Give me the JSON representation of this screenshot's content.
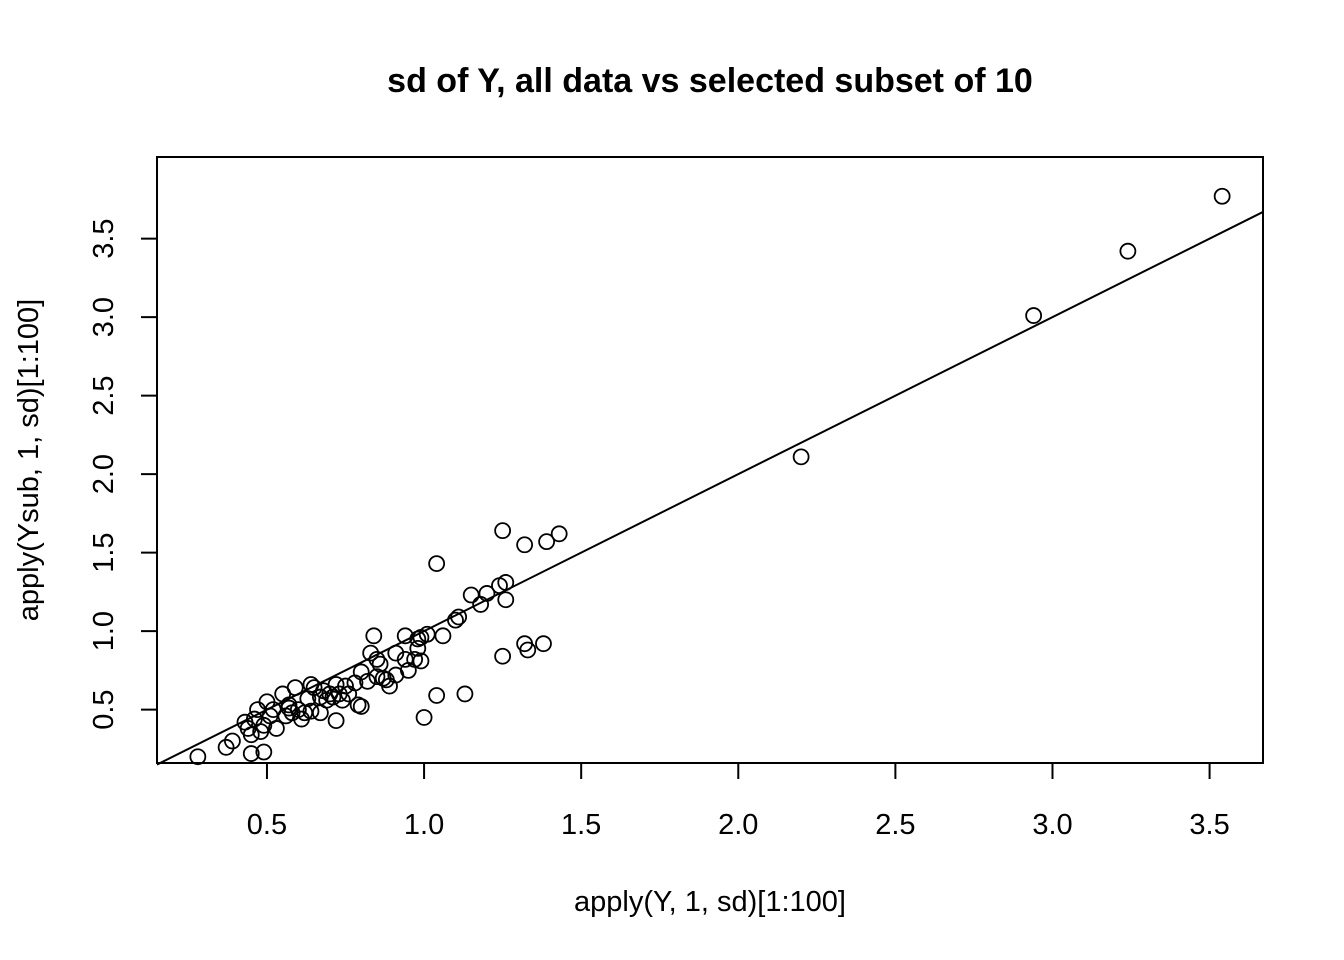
{
  "chart_data": {
    "type": "scatter",
    "title": "sd of Y, all data vs selected subset of 10",
    "xlabel": "apply(Y, 1, sd)[1:100]",
    "ylabel": "apply(Ysub, 1, sd)[1:100]",
    "xlim": [
      0.15,
      3.67
    ],
    "ylim": [
      0.16,
      4.02
    ],
    "xticks": [
      0.5,
      1.0,
      1.5,
      2.0,
      2.5,
      3.0,
      3.5
    ],
    "xtick_labels": [
      "0.5",
      "1.0",
      "1.5",
      "2.0",
      "2.5",
      "3.0",
      "3.5"
    ],
    "yticks": [
      0.5,
      1.0,
      1.5,
      2.0,
      2.5,
      3.0,
      3.5
    ],
    "ytick_labels": [
      "0.5",
      "1.0",
      "1.5",
      "2.0",
      "2.5",
      "3.0",
      "3.5"
    ],
    "grid": false,
    "reference_line": {
      "slope": 1.0,
      "intercept": 0.0
    },
    "points": [
      {
        "x": 0.28,
        "y": 0.2
      },
      {
        "x": 0.37,
        "y": 0.26
      },
      {
        "x": 0.39,
        "y": 0.3
      },
      {
        "x": 0.43,
        "y": 0.42
      },
      {
        "x": 0.44,
        "y": 0.38
      },
      {
        "x": 0.45,
        "y": 0.22
      },
      {
        "x": 0.45,
        "y": 0.34
      },
      {
        "x": 0.46,
        "y": 0.44
      },
      {
        "x": 0.47,
        "y": 0.5
      },
      {
        "x": 0.48,
        "y": 0.36
      },
      {
        "x": 0.49,
        "y": 0.4
      },
      {
        "x": 0.49,
        "y": 0.23
      },
      {
        "x": 0.5,
        "y": 0.55
      },
      {
        "x": 0.51,
        "y": 0.46
      },
      {
        "x": 0.52,
        "y": 0.5
      },
      {
        "x": 0.53,
        "y": 0.38
      },
      {
        "x": 0.55,
        "y": 0.6
      },
      {
        "x": 0.56,
        "y": 0.46
      },
      {
        "x": 0.57,
        "y": 0.53
      },
      {
        "x": 0.57,
        "y": 0.51
      },
      {
        "x": 0.58,
        "y": 0.48
      },
      {
        "x": 0.59,
        "y": 0.64
      },
      {
        "x": 0.6,
        "y": 0.5
      },
      {
        "x": 0.61,
        "y": 0.44
      },
      {
        "x": 0.62,
        "y": 0.48
      },
      {
        "x": 0.63,
        "y": 0.57
      },
      {
        "x": 0.64,
        "y": 0.66
      },
      {
        "x": 0.64,
        "y": 0.49
      },
      {
        "x": 0.65,
        "y": 0.64
      },
      {
        "x": 0.67,
        "y": 0.58
      },
      {
        "x": 0.67,
        "y": 0.48
      },
      {
        "x": 0.68,
        "y": 0.62
      },
      {
        "x": 0.69,
        "y": 0.56
      },
      {
        "x": 0.7,
        "y": 0.6
      },
      {
        "x": 0.71,
        "y": 0.58
      },
      {
        "x": 0.72,
        "y": 0.66
      },
      {
        "x": 0.72,
        "y": 0.43
      },
      {
        "x": 0.73,
        "y": 0.6
      },
      {
        "x": 0.74,
        "y": 0.56
      },
      {
        "x": 0.75,
        "y": 0.65
      },
      {
        "x": 0.76,
        "y": 0.6
      },
      {
        "x": 0.78,
        "y": 0.67
      },
      {
        "x": 0.79,
        "y": 0.53
      },
      {
        "x": 0.8,
        "y": 0.74
      },
      {
        "x": 0.8,
        "y": 0.52
      },
      {
        "x": 0.82,
        "y": 0.68
      },
      {
        "x": 0.83,
        "y": 0.86
      },
      {
        "x": 0.84,
        "y": 0.97
      },
      {
        "x": 0.85,
        "y": 0.71
      },
      {
        "x": 0.85,
        "y": 0.82
      },
      {
        "x": 0.86,
        "y": 0.79
      },
      {
        "x": 0.87,
        "y": 0.7
      },
      {
        "x": 0.88,
        "y": 0.69
      },
      {
        "x": 0.89,
        "y": 0.65
      },
      {
        "x": 0.91,
        "y": 0.72
      },
      {
        "x": 0.91,
        "y": 0.86
      },
      {
        "x": 0.94,
        "y": 0.82
      },
      {
        "x": 0.94,
        "y": 0.97
      },
      {
        "x": 0.95,
        "y": 0.75
      },
      {
        "x": 0.97,
        "y": 0.82
      },
      {
        "x": 0.98,
        "y": 0.89
      },
      {
        "x": 0.98,
        "y": 0.95
      },
      {
        "x": 0.99,
        "y": 0.81
      },
      {
        "x": 0.99,
        "y": 0.96
      },
      {
        "x": 1.0,
        "y": 0.45
      },
      {
        "x": 1.01,
        "y": 0.98
      },
      {
        "x": 1.04,
        "y": 1.43
      },
      {
        "x": 1.04,
        "y": 0.59
      },
      {
        "x": 1.06,
        "y": 0.97
      },
      {
        "x": 1.1,
        "y": 1.07
      },
      {
        "x": 1.11,
        "y": 1.09
      },
      {
        "x": 1.13,
        "y": 0.6
      },
      {
        "x": 1.15,
        "y": 1.23
      },
      {
        "x": 1.18,
        "y": 1.17
      },
      {
        "x": 1.2,
        "y": 1.24
      },
      {
        "x": 1.24,
        "y": 1.29
      },
      {
        "x": 1.25,
        "y": 1.64
      },
      {
        "x": 1.25,
        "y": 0.84
      },
      {
        "x": 1.26,
        "y": 1.31
      },
      {
        "x": 1.26,
        "y": 1.2
      },
      {
        "x": 1.32,
        "y": 0.92
      },
      {
        "x": 1.32,
        "y": 1.55
      },
      {
        "x": 1.33,
        "y": 0.88
      },
      {
        "x": 1.38,
        "y": 0.92
      },
      {
        "x": 1.39,
        "y": 1.57
      },
      {
        "x": 1.43,
        "y": 1.62
      },
      {
        "x": 2.2,
        "y": 2.11
      },
      {
        "x": 2.94,
        "y": 3.01
      },
      {
        "x": 3.24,
        "y": 3.42
      },
      {
        "x": 3.54,
        "y": 3.77
      }
    ]
  }
}
